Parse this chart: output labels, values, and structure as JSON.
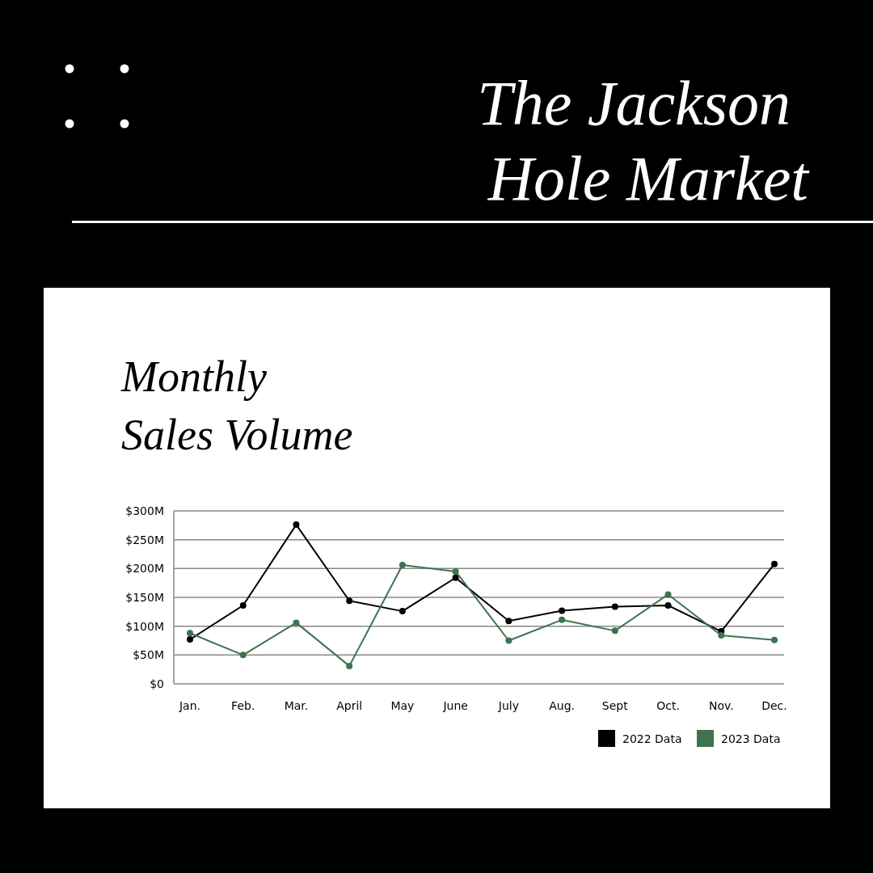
{
  "chart_data": {
    "type": "line",
    "title": "The Jackson Hole Market",
    "subtitle": "Monthly Sales Volume",
    "categories": [
      "Jan.",
      "Feb.",
      "Mar.",
      "April",
      "May",
      "June",
      "July",
      "Aug.",
      "Sept",
      "Oct.",
      "Nov.",
      "Dec."
    ],
    "series": [
      {
        "name": "2022 Data",
        "color": "#000000",
        "values": [
          77,
          136,
          276,
          144,
          126,
          184,
          109,
          127,
          134,
          136,
          91,
          208
        ]
      },
      {
        "name": "2023 Data",
        "color": "#3f7350",
        "values": [
          88,
          50,
          106,
          31,
          206,
          195,
          75,
          111,
          92,
          155,
          84,
          76
        ]
      }
    ],
    "ylim": [
      0,
      300
    ],
    "yticks": [
      {
        "value": 0,
        "label": "$0"
      },
      {
        "value": 50,
        "label": "$50M"
      },
      {
        "value": 100,
        "label": "$100M"
      },
      {
        "value": 150,
        "label": "$150M"
      },
      {
        "value": 200,
        "label": "$200M"
      },
      {
        "value": 250,
        "label": "$250M"
      },
      {
        "value": 300,
        "label": "$300M"
      }
    ],
    "grid": "y",
    "legend": "bottom right",
    "marker": "circle",
    "line_style": "solid"
  }
}
